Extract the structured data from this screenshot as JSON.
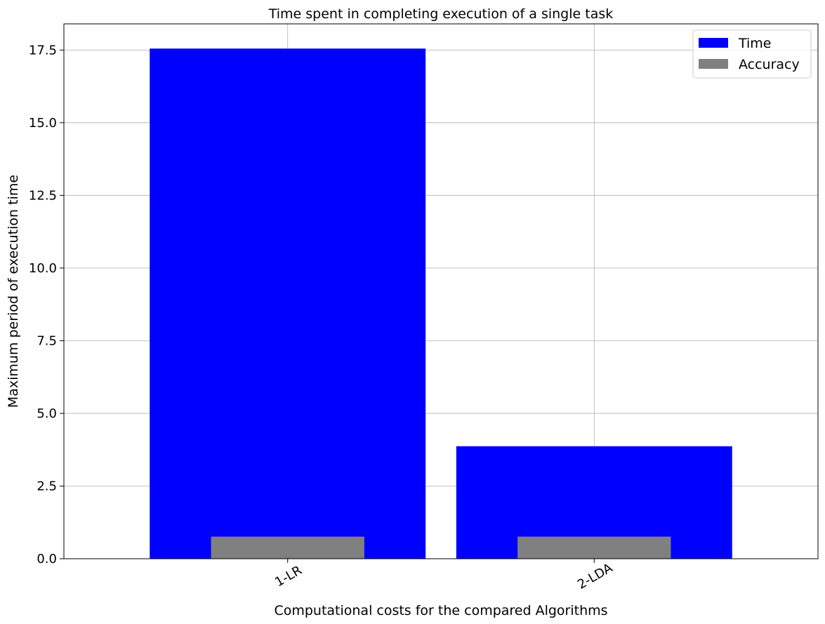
{
  "chart_data": {
    "type": "bar",
    "title": "Time spent in completing execution of a single task",
    "xlabel": "Computational costs for the compared Algorithms",
    "ylabel": "Maximum period of execution time",
    "categories": [
      "1-LR",
      "2-LDA"
    ],
    "series": [
      {
        "name": "Time",
        "values": [
          17.55,
          3.87
        ],
        "color": "#0000ff"
      },
      {
        "name": "Accuracy",
        "values": [
          0.76,
          0.76
        ],
        "color": "#808080"
      }
    ],
    "ylim": [
      0,
      18.4
    ],
    "yticks": [
      0.0,
      2.5,
      5.0,
      7.5,
      10.0,
      12.5,
      15.0,
      17.5
    ],
    "ytick_labels": [
      "0.0",
      "2.5",
      "5.0",
      "7.5",
      "10.0",
      "12.5",
      "15.0",
      "17.5"
    ],
    "grid": true,
    "legend_position": "top-right"
  }
}
